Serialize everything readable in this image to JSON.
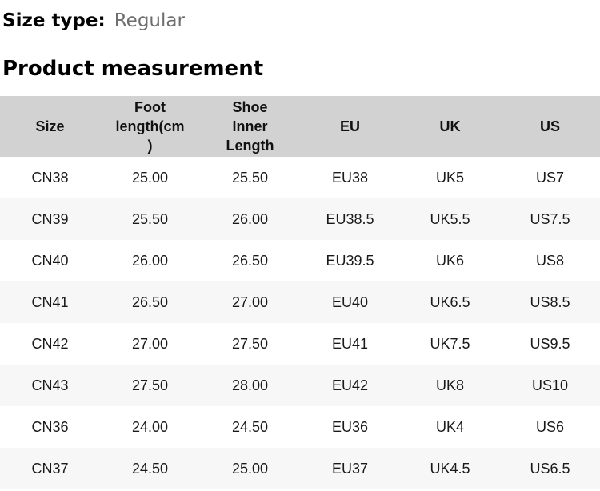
{
  "size_type": {
    "label": "Size type:",
    "value": "Regular"
  },
  "section_title": "Product measurement",
  "table": {
    "columns": [
      "Size",
      "Foot\nlength(cm\n)",
      "Shoe\nInner\nLength",
      "EU",
      "UK",
      "US"
    ],
    "rows": [
      [
        "CN38",
        "25.00",
        "25.50",
        "EU38",
        "UK5",
        "US7"
      ],
      [
        "CN39",
        "25.50",
        "26.00",
        "EU38.5",
        "UK5.5",
        "US7.5"
      ],
      [
        "CN40",
        "26.00",
        "26.50",
        "EU39.5",
        "UK6",
        "US8"
      ],
      [
        "CN41",
        "26.50",
        "27.00",
        "EU40",
        "UK6.5",
        "US8.5"
      ],
      [
        "CN42",
        "27.00",
        "27.50",
        "EU41",
        "UK7.5",
        "US9.5"
      ],
      [
        "CN43",
        "27.50",
        "28.00",
        "EU42",
        "UK8",
        "US10"
      ],
      [
        "CN36",
        "24.00",
        "24.50",
        "EU36",
        "UK4",
        "US6"
      ],
      [
        "CN37",
        "24.50",
        "25.00",
        "EU37",
        "UK4.5",
        "US6.5"
      ]
    ]
  },
  "colors": {
    "header_bg": "#d2d2d2",
    "row_alt_bg": "#f7f7f7",
    "muted_text": "#6e6e6e",
    "text": "#1a1a1a"
  }
}
